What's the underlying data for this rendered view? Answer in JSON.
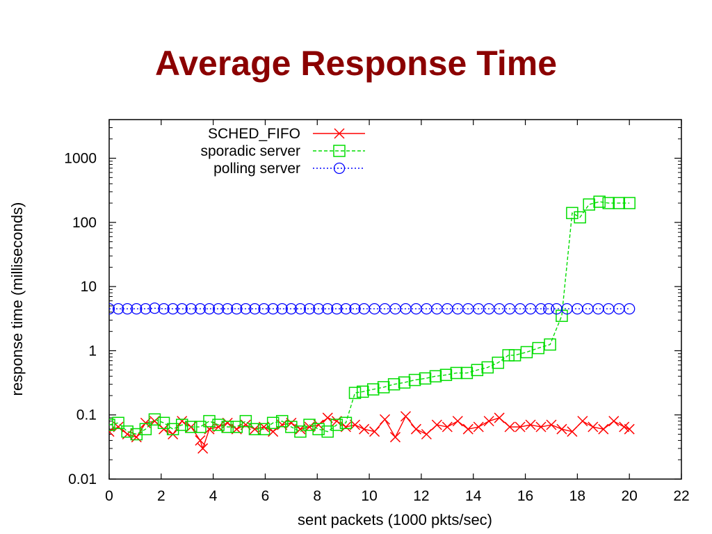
{
  "slide": {
    "title": "Average Response Time"
  },
  "chart_data": {
    "type": "line",
    "xlabel": "sent packets (1000 pkts/sec)",
    "ylabel": "response time (milliseconds)",
    "xlim": [
      0,
      22
    ],
    "ylim": [
      0.01,
      4000
    ],
    "yscale": "log",
    "xticks": [
      0,
      2,
      4,
      6,
      8,
      10,
      12,
      14,
      16,
      18,
      20,
      22
    ],
    "yticks": [
      0.01,
      0.1,
      1,
      10,
      100,
      1000
    ],
    "ytick_labels": [
      "0.01",
      "0.1",
      "1",
      "10",
      "100",
      "1000"
    ],
    "grid": false,
    "legend_position": "top-center",
    "series": [
      {
        "name": "SCHED_FIFO",
        "color": "#ff0000",
        "marker": "x",
        "line": "solid",
        "x": [
          0,
          0.35,
          0.7,
          1.05,
          1.4,
          1.75,
          2.1,
          2.45,
          2.8,
          3.15,
          3.5,
          3.6,
          3.85,
          4.2,
          4.55,
          4.9,
          5.25,
          5.6,
          5.95,
          6.3,
          6.65,
          7.0,
          7.35,
          7.7,
          8.05,
          8.4,
          8.75,
          9.1,
          9.45,
          9.8,
          10.2,
          10.6,
          11.0,
          11.4,
          11.8,
          12.2,
          12.6,
          13.0,
          13.4,
          13.8,
          14.2,
          14.6,
          15.0,
          15.4,
          15.8,
          16.2,
          16.6,
          17.0,
          17.4,
          17.8,
          18.2,
          18.6,
          19.0,
          19.4,
          19.8,
          20.0
        ],
        "y": [
          0.055,
          0.065,
          0.05,
          0.045,
          0.075,
          0.08,
          0.06,
          0.05,
          0.08,
          0.065,
          0.04,
          0.03,
          0.06,
          0.065,
          0.075,
          0.06,
          0.07,
          0.06,
          0.065,
          0.055,
          0.07,
          0.075,
          0.06,
          0.065,
          0.07,
          0.09,
          0.08,
          0.065,
          0.07,
          0.06,
          0.055,
          0.085,
          0.045,
          0.095,
          0.06,
          0.05,
          0.07,
          0.065,
          0.08,
          0.06,
          0.065,
          0.08,
          0.09,
          0.065,
          0.065,
          0.07,
          0.065,
          0.07,
          0.06,
          0.055,
          0.08,
          0.065,
          0.06,
          0.08,
          0.065,
          0.06
        ]
      },
      {
        "name": "sporadic server",
        "color": "#00dd00",
        "marker": "square",
        "line": "dashed",
        "x": [
          0,
          0.35,
          0.7,
          1.05,
          1.4,
          1.75,
          2.1,
          2.45,
          2.8,
          3.15,
          3.5,
          3.85,
          4.2,
          4.55,
          4.9,
          5.25,
          5.6,
          5.95,
          6.3,
          6.65,
          7.0,
          7.35,
          7.7,
          8.05,
          8.4,
          8.75,
          9.1,
          9.45,
          9.75,
          10.15,
          10.55,
          10.95,
          11.35,
          11.75,
          12.15,
          12.55,
          12.95,
          13.35,
          13.75,
          14.15,
          14.55,
          14.95,
          15.35,
          15.6,
          16.05,
          16.5,
          16.95,
          17.4,
          17.8,
          18.1,
          18.45,
          18.85,
          19.2,
          19.6,
          20.0
        ],
        "y": [
          0.07,
          0.075,
          0.055,
          0.05,
          0.06,
          0.085,
          0.075,
          0.06,
          0.07,
          0.065,
          0.065,
          0.08,
          0.07,
          0.065,
          0.065,
          0.08,
          0.06,
          0.06,
          0.075,
          0.08,
          0.065,
          0.055,
          0.07,
          0.06,
          0.055,
          0.07,
          0.075,
          0.22,
          0.23,
          0.25,
          0.27,
          0.3,
          0.32,
          0.35,
          0.37,
          0.4,
          0.42,
          0.45,
          0.45,
          0.5,
          0.55,
          0.65,
          0.85,
          0.85,
          0.95,
          1.1,
          1.25,
          3.5,
          140,
          120,
          190,
          210,
          200,
          200,
          200
        ]
      },
      {
        "name": "polling server",
        "color": "#0000ff",
        "marker": "circle",
        "line": "dotted",
        "x": [
          0,
          0.35,
          0.7,
          1.05,
          1.4,
          1.75,
          2.1,
          2.45,
          2.8,
          3.15,
          3.5,
          3.85,
          4.2,
          4.55,
          4.9,
          5.25,
          5.6,
          5.95,
          6.3,
          6.65,
          7.0,
          7.35,
          7.7,
          8.05,
          8.4,
          8.75,
          9.1,
          9.45,
          9.8,
          10.2,
          10.6,
          11.0,
          11.4,
          11.8,
          12.2,
          12.6,
          13.0,
          13.4,
          13.8,
          14.2,
          14.6,
          15.0,
          15.4,
          15.8,
          16.2,
          16.6,
          16.9,
          17.2,
          17.6,
          18.0,
          18.4,
          18.8,
          19.2,
          19.6,
          20.0
        ],
        "y": [
          4.5,
          4.5,
          4.5,
          4.5,
          4.5,
          4.6,
          4.5,
          4.5,
          4.5,
          4.5,
          4.5,
          4.5,
          4.5,
          4.5,
          4.5,
          4.5,
          4.5,
          4.5,
          4.5,
          4.5,
          4.5,
          4.5,
          4.5,
          4.5,
          4.5,
          4.5,
          4.5,
          4.5,
          4.5,
          4.5,
          4.5,
          4.5,
          4.5,
          4.5,
          4.5,
          4.5,
          4.5,
          4.5,
          4.5,
          4.5,
          4.5,
          4.5,
          4.5,
          4.5,
          4.5,
          4.5,
          4.5,
          4.5,
          4.5,
          4.5,
          4.5,
          4.5,
          4.5,
          4.5,
          4.5
        ]
      }
    ]
  }
}
